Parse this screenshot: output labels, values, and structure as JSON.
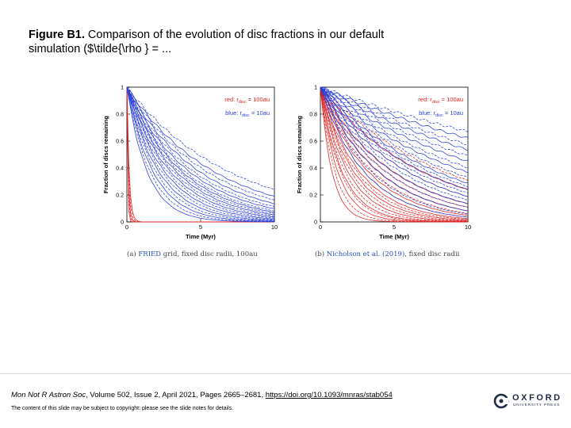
{
  "figure": {
    "label": "Figure B1.",
    "text": " Comparison of the evolution of disc fractions in our default simulation ($\\tilde{\\rho } = ..."
  },
  "chart_data": [
    {
      "type": "line",
      "xlabel": "Time (Myr)",
      "ylabel": "Fraction of discs remaining",
      "xlim": [
        0,
        10
      ],
      "ylim": [
        0,
        1
      ],
      "xticks": [
        "0",
        "5",
        "10"
      ],
      "yticks": [
        "0",
        "0.2",
        "0.4",
        "0.6",
        "0.8",
        "1"
      ],
      "legend": [
        {
          "text": "red: r",
          "sub": "disc",
          "rest": " = 100au",
          "color": "#e02020"
        },
        {
          "text": "blue: r",
          "sub": "disc",
          "rest": " = 10au",
          "color": "#2a3fd6"
        }
      ],
      "series": [
        {
          "name": "red: r_disc = 100au",
          "color": "#e02020",
          "n_curves": 5,
          "decay_time_myr": [
            0.05,
            0.07,
            0.09,
            0.12,
            0.15
          ]
        },
        {
          "name": "blue: r_disc = 10au",
          "color": "#2a3fd6",
          "n_curves": 20,
          "decay_time_myr": [
            1.4,
            1.6,
            1.8,
            2.0,
            2.2,
            2.4,
            2.6,
            2.8,
            3.0,
            3.2,
            3.4,
            3.6,
            3.8,
            4.0,
            4.3,
            4.6,
            5.0,
            5.5,
            6.0,
            7.0
          ]
        }
      ],
      "caption": {
        "prefix": "(a) ",
        "cite": "FRIED",
        "rest": " grid, fixed disc radii, 100au"
      }
    },
    {
      "type": "line",
      "xlabel": "Time (Myr)",
      "ylabel": "Fraction of discs remaining",
      "xlim": [
        0,
        10
      ],
      "ylim": [
        0,
        1
      ],
      "xticks": [
        "0",
        "5",
        "10"
      ],
      "yticks": [
        "0",
        "0.2",
        "0.4",
        "0.6",
        "0.8",
        "1"
      ],
      "legend": [
        {
          "text": "red: r",
          "sub": "disc",
          "rest": " = 100au",
          "color": "#e02020"
        },
        {
          "text": "blue: r",
          "sub": "disc",
          "rest": " = 10au",
          "color": "#2a3fd6"
        }
      ],
      "series": [
        {
          "name": "red: r_disc = 100au",
          "color": "#e02020",
          "n_curves": 20,
          "decay_time_myr": [
            0.8,
            1.0,
            1.2,
            1.4,
            1.5,
            1.7,
            1.9,
            2.1,
            2.3,
            2.5,
            2.7,
            3.0,
            3.3,
            3.6,
            4.0,
            4.5,
            5.0,
            6.0,
            7.0,
            8.5
          ]
        },
        {
          "name": "blue: r_disc = 10au",
          "color": "#2a3fd6",
          "n_curves": 20,
          "decay_time_myr": [
            3.0,
            3.5,
            4.0,
            4.5,
            5.0,
            5.5,
            6.0,
            6.5,
            7.0,
            7.5,
            8.0,
            9.0,
            10.0,
            11.0,
            12.5,
            14.0,
            16.0,
            18.0,
            21.0,
            25.0
          ]
        }
      ],
      "caption": {
        "prefix": "(b) ",
        "cite": "Nicholson et al. (2019)",
        "rest": ", fixed disc radii"
      }
    }
  ],
  "footer": {
    "journal": "Mon Not R Astron Soc",
    "details": ", Volume 502, Issue 2, April 2021, Pages 2665–2681, ",
    "doi": "https://doi.org/10.1093/mnras/stab054",
    "disclaimer": "The content of this slide may be subject to copyright: please see the slide notes for details."
  },
  "publisher": {
    "name": "OXFORD",
    "sub": "UNIVERSITY PRESS"
  }
}
